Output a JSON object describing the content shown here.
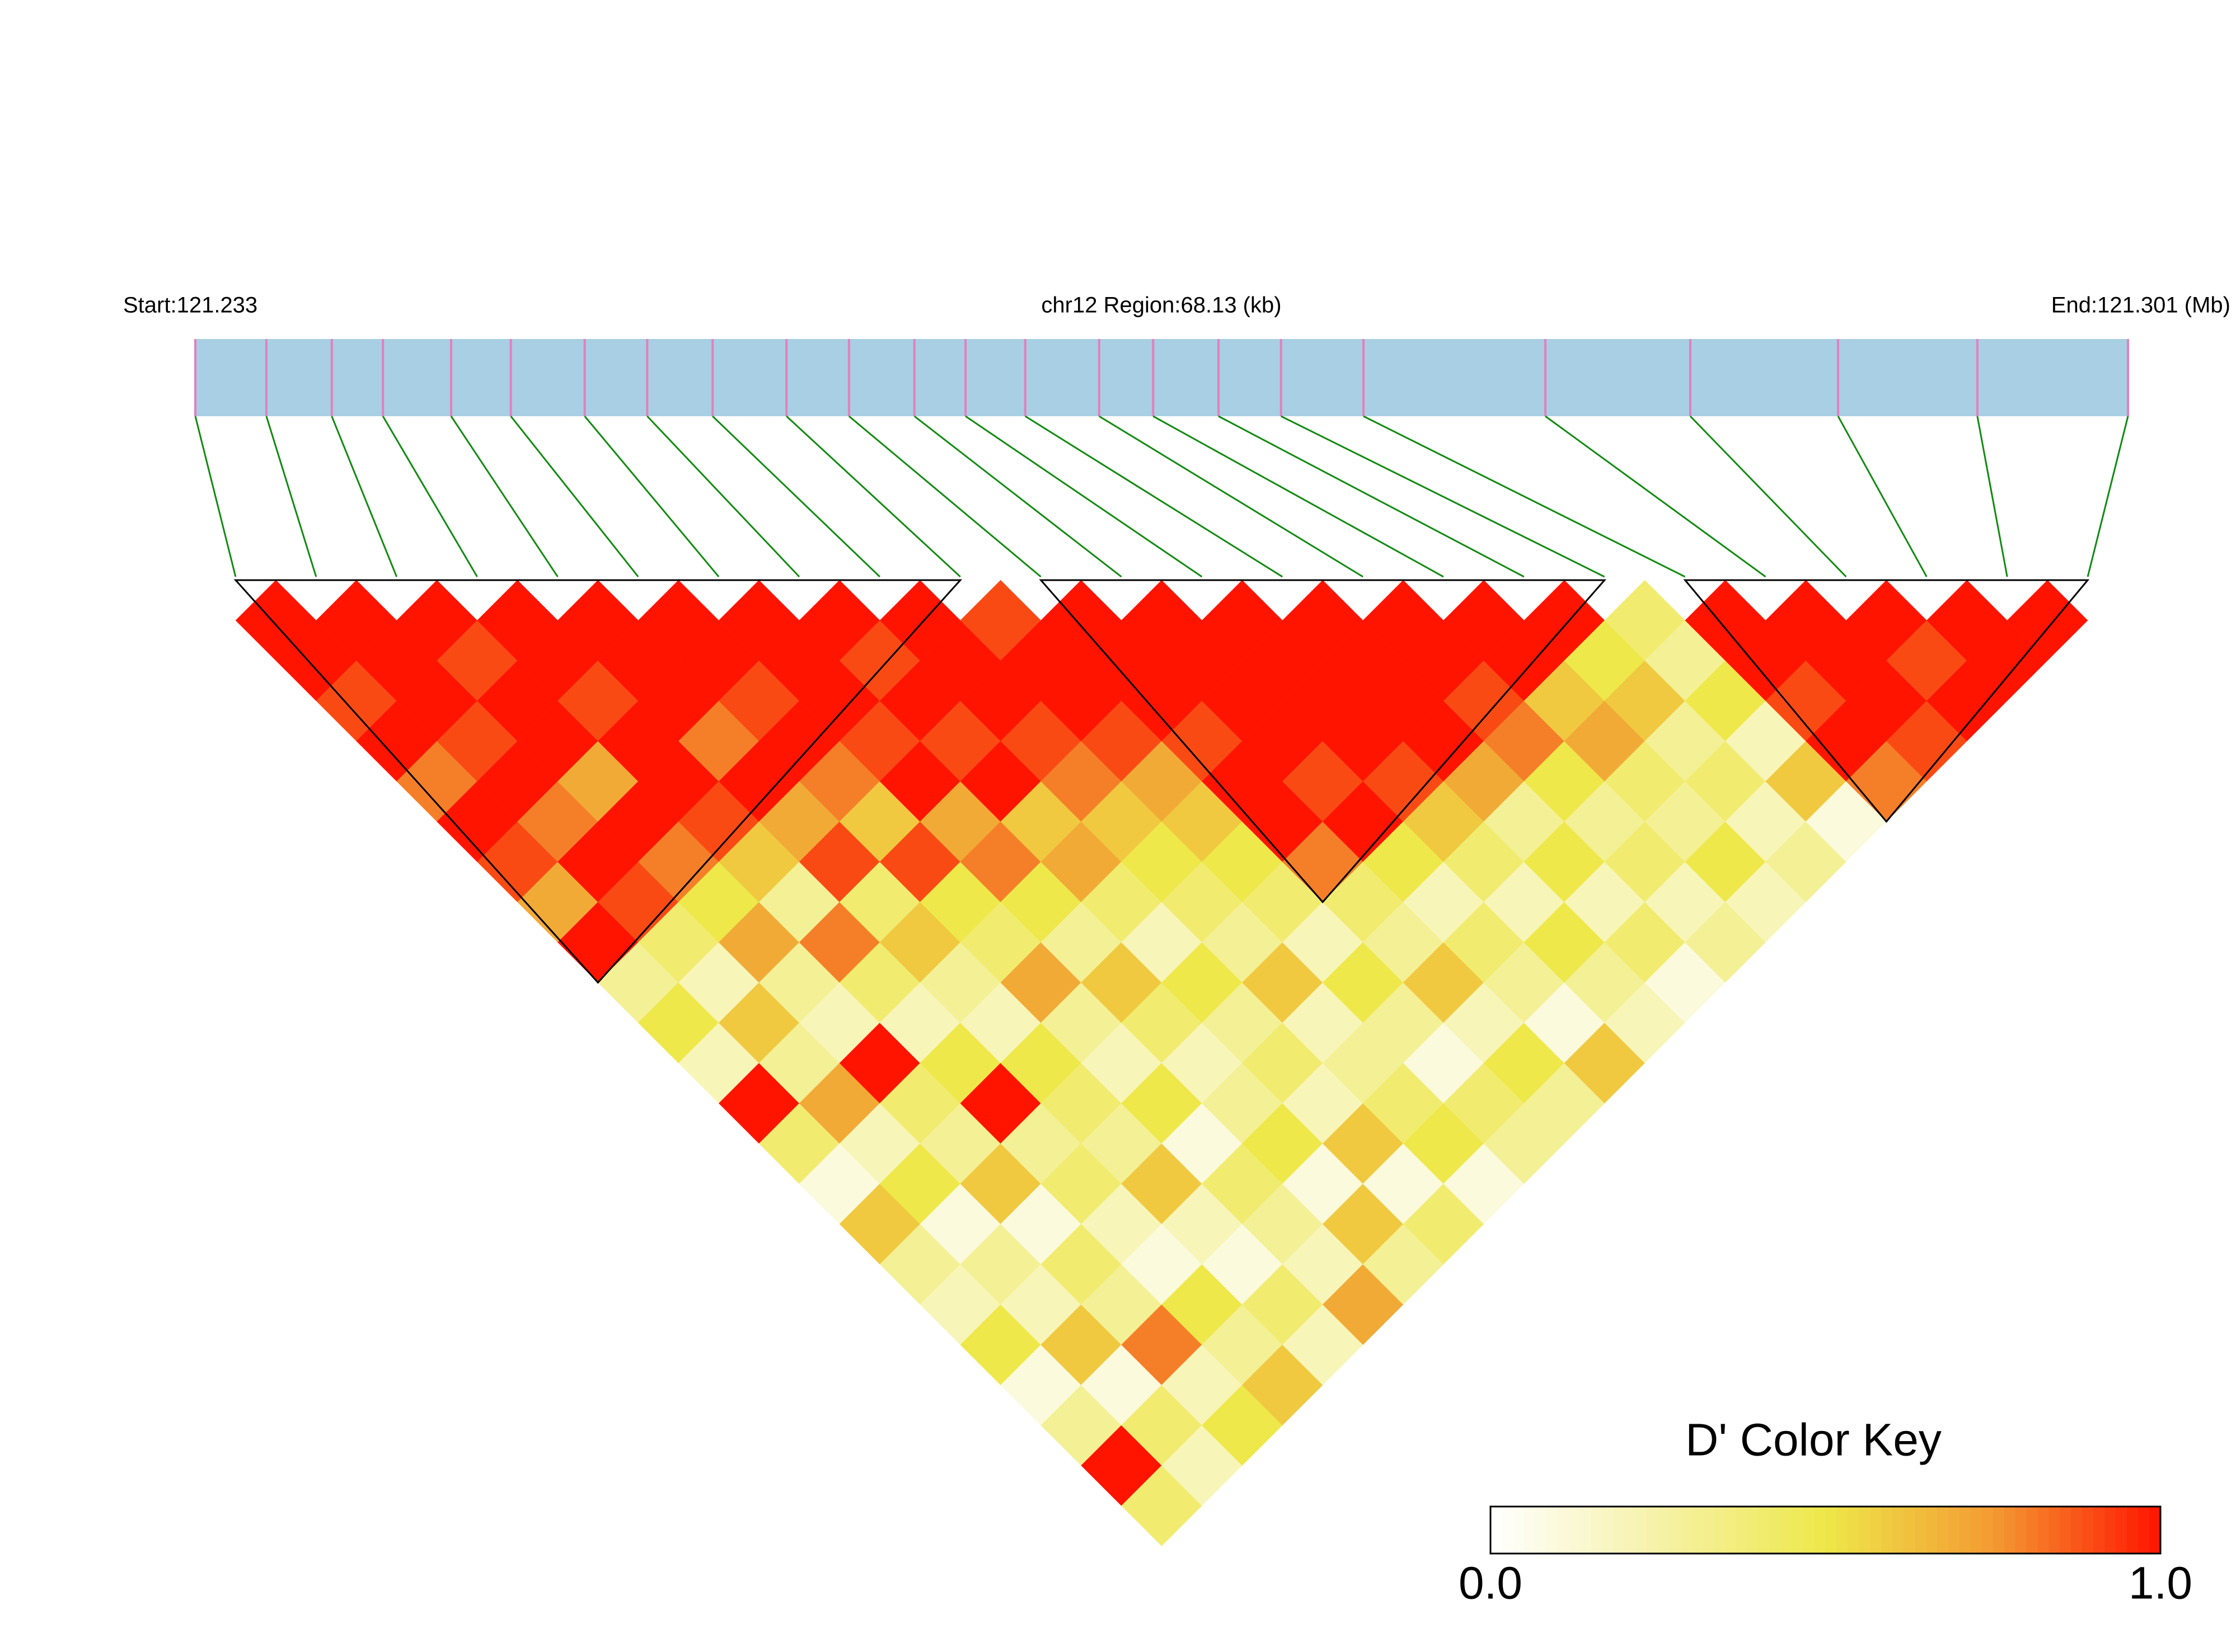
{
  "chart_data": {
    "type": "ld-heatmap",
    "start_label": "Start:121.233",
    "region_label": "chr12 Region:68.13 (kb)",
    "end_label": "End:121.301 (Mb)",
    "xlim": [
      121.233,
      121.301
    ],
    "positions": [
      121.233,
      121.2355,
      121.2378,
      121.2396,
      121.242,
      121.2441,
      121.2467,
      121.2489,
      121.2512,
      121.2538,
      121.256,
      121.2583,
      121.2601,
      121.2622,
      121.2648,
      121.2667,
      121.269,
      121.2712,
      121.2741,
      121.2805,
      121.2856,
      121.2908,
      121.2957,
      121.301
    ],
    "dprime": [
      [
        1,
        1,
        0.9,
        1,
        0.8,
        1,
        0.9,
        0.7,
        1,
        0.3,
        0.5,
        0.2,
        1,
        0.4,
        0.1,
        0.6,
        0.3,
        0.2,
        0.5,
        0.1,
        0.3,
        1,
        0.4
      ],
      [
        1,
        1,
        1,
        0.9,
        1,
        0.8,
        1,
        0.9,
        0.4,
        0.2,
        0.6,
        0.3,
        0.7,
        0.2,
        0.5,
        0.1,
        0.3,
        0.2,
        0.6,
        0.1,
        0.4,
        0.2
      ],
      [
        1,
        0.9,
        1,
        1,
        0.7,
        1,
        0.8,
        0.5,
        0.7,
        0.3,
        0.2,
        1,
        0.4,
        0.3,
        0.6,
        0.1,
        0.4,
        0.3,
        0.8,
        0.2,
        0.5
      ],
      [
        1,
        1,
        0.9,
        1,
        1,
        0.9,
        0.6,
        0.3,
        0.8,
        0.4,
        0.2,
        0.5,
        1,
        0.3,
        0.4,
        0.2,
        0.1,
        0.5,
        0.3,
        0.6
      ],
      [
        1,
        1,
        1,
        0.8,
        1,
        0.7,
        0.9,
        0.4,
        0.6,
        0.3,
        0.2,
        0.5,
        0.4,
        0.3,
        0.6,
        0.2,
        0.1,
        0.4,
        0.2
      ],
      [
        1,
        1,
        0.9,
        1,
        0.8,
        0.6,
        0.9,
        0.5,
        0.4,
        0.7,
        0.3,
        0.2,
        0.5,
        0.1,
        0.4,
        0.3,
        0.2,
        0.7
      ],
      [
        1,
        1,
        1,
        0.9,
        1,
        0.7,
        0.8,
        0.5,
        0.3,
        0.6,
        0.4,
        0.2,
        0.3,
        0.5,
        0.1,
        0.6,
        0.3
      ],
      [
        1,
        0.9,
        1,
        0.9,
        1,
        0.6,
        0.7,
        0.4,
        0.2,
        0.5,
        0.3,
        0.4,
        0.2,
        0.6,
        0.1,
        0.4
      ],
      [
        1,
        1,
        1,
        0.9,
        0.8,
        0.6,
        0.5,
        0.4,
        0.3,
        0.6,
        0.2,
        0.3,
        0.4,
        0.5,
        0.1
      ],
      [
        0.9,
        1,
        1,
        0.9,
        0.7,
        0.6,
        0.5,
        0.4,
        0.2,
        0.5,
        0.3,
        0.1,
        0.4,
        0.3
      ],
      [
        1,
        1,
        1,
        0.9,
        1,
        1,
        0.8,
        0.4,
        0.3,
        0.6,
        0.2,
        0.5,
        0.3
      ],
      [
        1,
        1,
        1,
        1,
        0.9,
        1,
        0.5,
        0.2,
        0.4,
        0.3,
        0.1,
        0.6
      ],
      [
        1,
        1,
        1,
        1,
        0.9,
        0.6,
        0.4,
        0.2,
        0.5,
        0.3,
        0.2
      ],
      [
        1,
        1,
        1,
        1,
        0.7,
        0.3,
        0.5,
        0.2,
        0.4,
        0.1
      ],
      [
        1,
        1,
        0.9,
        0.8,
        0.5,
        0.3,
        0.4,
        0.2,
        0.3
      ],
      [
        1,
        1,
        0.6,
        0.7,
        0.4,
        0.3,
        0.5,
        0.2
      ],
      [
        1,
        0.5,
        0.6,
        0.3,
        0.4,
        0.2,
        0.3
      ],
      [
        0.4,
        0.3,
        0.5,
        0.2,
        0.6,
        0.1
      ],
      [
        1,
        1,
        0.9,
        1,
        0.8
      ],
      [
        1,
        1,
        1,
        0.9
      ],
      [
        1,
        0.9,
        1
      ],
      [
        1,
        1
      ],
      [
        1
      ]
    ],
    "blocks": [
      [
        0,
        9
      ],
      [
        10,
        17
      ],
      [
        18,
        23
      ]
    ],
    "bar_color": "#a8cfe3",
    "marker_color": "#e47fbf",
    "connector_color": "#128a12",
    "block_color": "#000000",
    "color_key": {
      "title": "D' Color Key",
      "ticks": [
        {
          "value": 0,
          "label": "0.0"
        },
        {
          "value": 1,
          "label": "1.0"
        }
      ],
      "colors": [
        "#ffffff",
        "#f6f2a8",
        "#eee84a",
        "#f39a32",
        "#ff1400"
      ]
    }
  }
}
